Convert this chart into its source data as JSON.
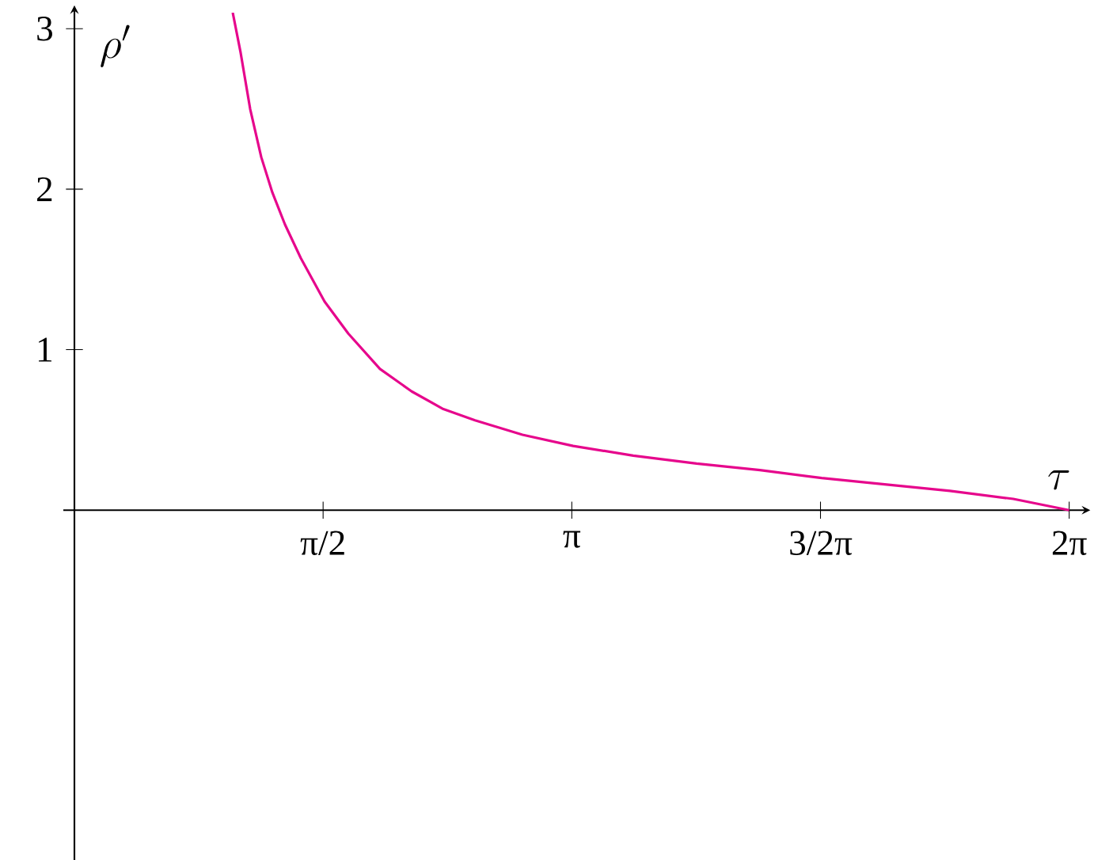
{
  "chart_data": {
    "type": "line",
    "xlabel": "\\tau",
    "ylabel": "\\rho'",
    "x": [
      1.0,
      1.05,
      1.11,
      1.18,
      1.25,
      1.33,
      1.43,
      1.58,
      1.73,
      1.93,
      2.13,
      2.33,
      2.53,
      2.83,
      3.15,
      3.53,
      3.93,
      4.33,
      4.72,
      5.13,
      5.53,
      5.93,
      6.283
    ],
    "values": [
      3.1,
      2.85,
      2.5,
      2.2,
      1.98,
      1.78,
      1.57,
      1.3,
      1.1,
      0.88,
      0.74,
      0.63,
      0.56,
      0.47,
      0.4,
      0.34,
      0.29,
      0.25,
      0.2,
      0.16,
      0.12,
      0.07,
      0
    ],
    "color": "#e6078c",
    "line_style": "solid",
    "marker": "none",
    "grid": false,
    "xlim": [
      -0.07,
      6.37
    ],
    "ylim": [
      -2.18,
      3.1
    ],
    "xticks": [
      {
        "value": 1.5708,
        "label": "π/2"
      },
      {
        "value": 3.1416,
        "label": "π"
      },
      {
        "value": 4.7124,
        "label": "3/2π"
      },
      {
        "value": 6.2832,
        "label": "2π"
      }
    ],
    "yticks": [
      1,
      2,
      3
    ]
  }
}
